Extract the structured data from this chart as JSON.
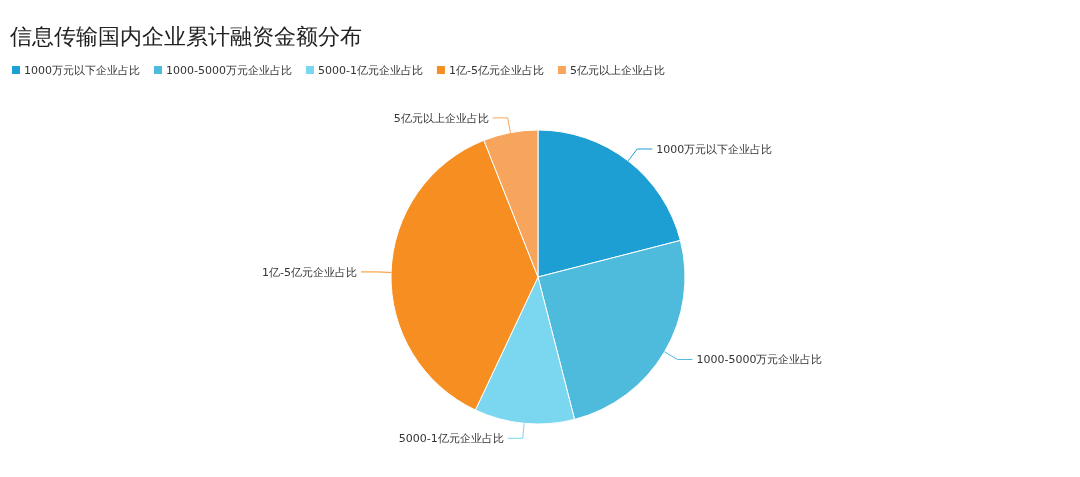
{
  "chart_data": {
    "type": "pie",
    "title": "信息传输国内企业累计融资金额分布",
    "categories": [
      "1000万元以下企业占比",
      "1000-5000万元企业占比",
      "5000-1亿元企业占比",
      "1亿-5亿元企业占比",
      "5亿元以上企业占比"
    ],
    "values": [
      21,
      25,
      11,
      37,
      6
    ],
    "colors": [
      "#1e9fd4",
      "#4ebadc",
      "#7bd6ef",
      "#f68e22",
      "#f7a55d"
    ],
    "legend": "top left"
  }
}
